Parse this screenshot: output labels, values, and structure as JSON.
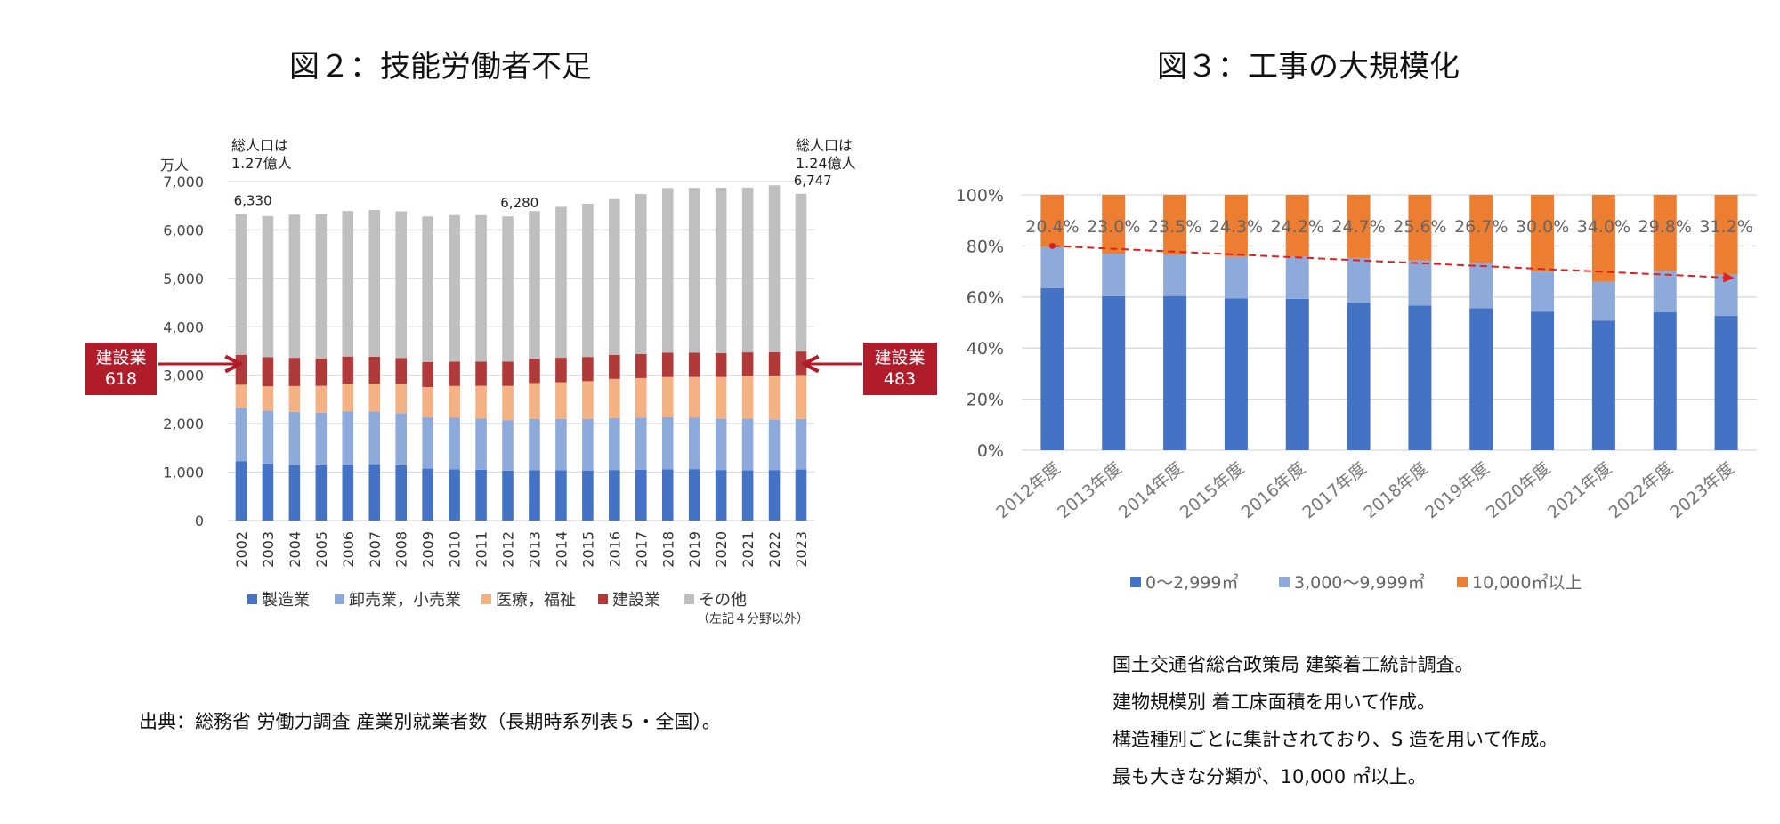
{
  "chart_data": [
    {
      "type": "bar",
      "stacked": true,
      "title": "図２：技能労働者不足",
      "ylabel": "万人",
      "ylim": [
        0,
        7000
      ],
      "yticks": [
        "0",
        "1,000",
        "2,000",
        "3,000",
        "4,000",
        "5,000",
        "6,000",
        "7,000"
      ],
      "grid": true,
      "legend_position": "bottom",
      "categories": [
        "2002",
        "2003",
        "2004",
        "2005",
        "2006",
        "2007",
        "2008",
        "2009",
        "2010",
        "2011",
        "2012",
        "2013",
        "2014",
        "2015",
        "2016",
        "2017",
        "2018",
        "2019",
        "2020",
        "2021",
        "2022",
        "2023"
      ],
      "series": [
        {
          "name": "製造業",
          "color": "#4472c4",
          "values": [
            1222,
            1178,
            1150,
            1142,
            1161,
            1165,
            1144,
            1073,
            1060,
            1049,
            1032,
            1039,
            1040,
            1035,
            1045,
            1052,
            1060,
            1063,
            1045,
            1037,
            1044,
            1055
          ]
        },
        {
          "name": "卸売業，小売業",
          "color": "#8eaadb",
          "values": [
            1108,
            1094,
            1095,
            1085,
            1096,
            1085,
            1074,
            1063,
            1062,
            1055,
            1041,
            1058,
            1059,
            1059,
            1068,
            1075,
            1072,
            1059,
            1057,
            1065,
            1044,
            1041
          ]
        },
        {
          "name": "医療，福祉",
          "color": "#f4b183",
          "values": [
            474,
            499,
            531,
            553,
            571,
            579,
            598,
            621,
            656,
            676,
            706,
            743,
            757,
            784,
            811,
            814,
            831,
            843,
            862,
            884,
            908,
            910
          ]
        },
        {
          "name": "建設業",
          "color": "#b03a3a",
          "values": [
            618,
            604,
            584,
            568,
            559,
            552,
            537,
            517,
            504,
            502,
            503,
            499,
            505,
            500,
            495,
            498,
            503,
            499,
            492,
            485,
            479,
            483
          ]
        },
        {
          "name": "その他",
          "color": "#bfbfbf",
          "values": [
            2908,
            2911,
            2956,
            2982,
            3005,
            3031,
            3032,
            3004,
            3025,
            3023,
            2998,
            3050,
            3117,
            3162,
            3219,
            3302,
            3399,
            3405,
            3417,
            3402,
            3447,
            3258
          ]
        }
      ],
      "bar_labels": [
        {
          "index": 0,
          "text": "6,330"
        },
        {
          "index": 10,
          "text": "6,280"
        },
        {
          "index": 21,
          "text": "6,747"
        }
      ],
      "annotations": {
        "left_top": [
          "総人口は",
          "1.27億人"
        ],
        "right_top": [
          "総人口は",
          "1.24億人"
        ],
        "left_box": [
          "建設業",
          "618"
        ],
        "right_box": [
          "建設業",
          "483"
        ],
        "legend_note": "（左記４分野以外）"
      },
      "source": "出典：総務省 労働力調査 産業別就業者数（長期時系列表５・全国）。"
    },
    {
      "type": "bar",
      "stacked": true,
      "percent": true,
      "title": "図３：工事の大規模化",
      "ylim": [
        0,
        100
      ],
      "yticks": [
        "0%",
        "20%",
        "40%",
        "60%",
        "80%",
        "100%"
      ],
      "grid": true,
      "legend_position": "bottom",
      "categories": [
        "2012年度",
        "2013年度",
        "2014年度",
        "2015年度",
        "2016年度",
        "2017年度",
        "2018年度",
        "2019年度",
        "2020年度",
        "2021年度",
        "2022年度",
        "2023年度"
      ],
      "series": [
        {
          "name": "0〜2,999㎡",
          "color": "#4472c4",
          "values": [
            63.5,
            60.3,
            60.4,
            59.5,
            59.3,
            57.8,
            56.7,
            55.6,
            54.3,
            50.8,
            54.0,
            52.6
          ]
        },
        {
          "name": "3,000〜9,999㎡",
          "color": "#8eaadb",
          "values": [
            16.1,
            16.7,
            16.1,
            16.2,
            16.5,
            17.5,
            17.7,
            17.7,
            15.7,
            15.2,
            16.2,
            16.2
          ]
        },
        {
          "name": "10,000㎡以上",
          "color": "#ed7d31",
          "values": [
            20.4,
            23.0,
            23.5,
            24.3,
            24.2,
            24.7,
            25.6,
            26.7,
            30.0,
            34.0,
            29.8,
            31.2
          ]
        }
      ],
      "data_labels": [
        "20.4%",
        "23.0%",
        "23.5%",
        "24.3%",
        "24.2%",
        "24.7%",
        "25.6%",
        "26.7%",
        "30.0%",
        "34.0%",
        "29.8%",
        "31.2%"
      ],
      "trend_arrow": {
        "from_index": 0,
        "to_index": 11,
        "from_value": 80.0,
        "to_value": 67.5,
        "color": "#e02020",
        "style": "dashed"
      },
      "notes": [
        "国土交通省総合政策局 建築着工統計調査。",
        "建物規模別 着工床面積を用いて作成。",
        "構造種別ごとに集計されており、S 造を用いて作成。",
        "最も大きな分類が、10,000 ㎡以上。"
      ]
    }
  ]
}
